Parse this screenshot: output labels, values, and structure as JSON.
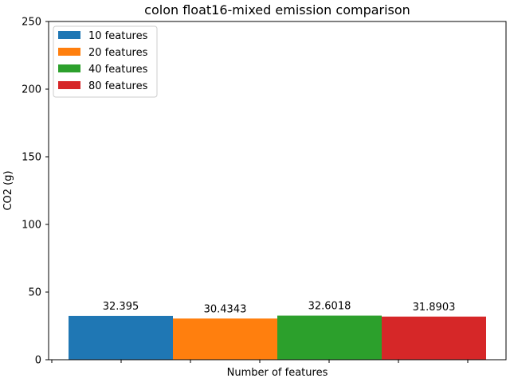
{
  "chart_data": {
    "type": "bar",
    "title": "colon float16-mixed emission comparison",
    "xlabel": "Number of features",
    "ylabel": "CO2 (g)",
    "ylim": [
      0,
      250
    ],
    "yticks": [
      0,
      50,
      100,
      150,
      200,
      250
    ],
    "grid": false,
    "legend_position": "top-left",
    "series": [
      {
        "name": "10 features",
        "value": 32.395,
        "label": "32.395",
        "color": "#1f77b4"
      },
      {
        "name": "20 features",
        "value": 30.4343,
        "label": "30.4343",
        "color": "#ff7f0e"
      },
      {
        "name": "40 features",
        "value": 32.6018,
        "label": "32.6018",
        "color": "#2ca02c"
      },
      {
        "name": "80 features",
        "value": 31.8903,
        "label": "31.8903",
        "color": "#d62728"
      }
    ]
  }
}
